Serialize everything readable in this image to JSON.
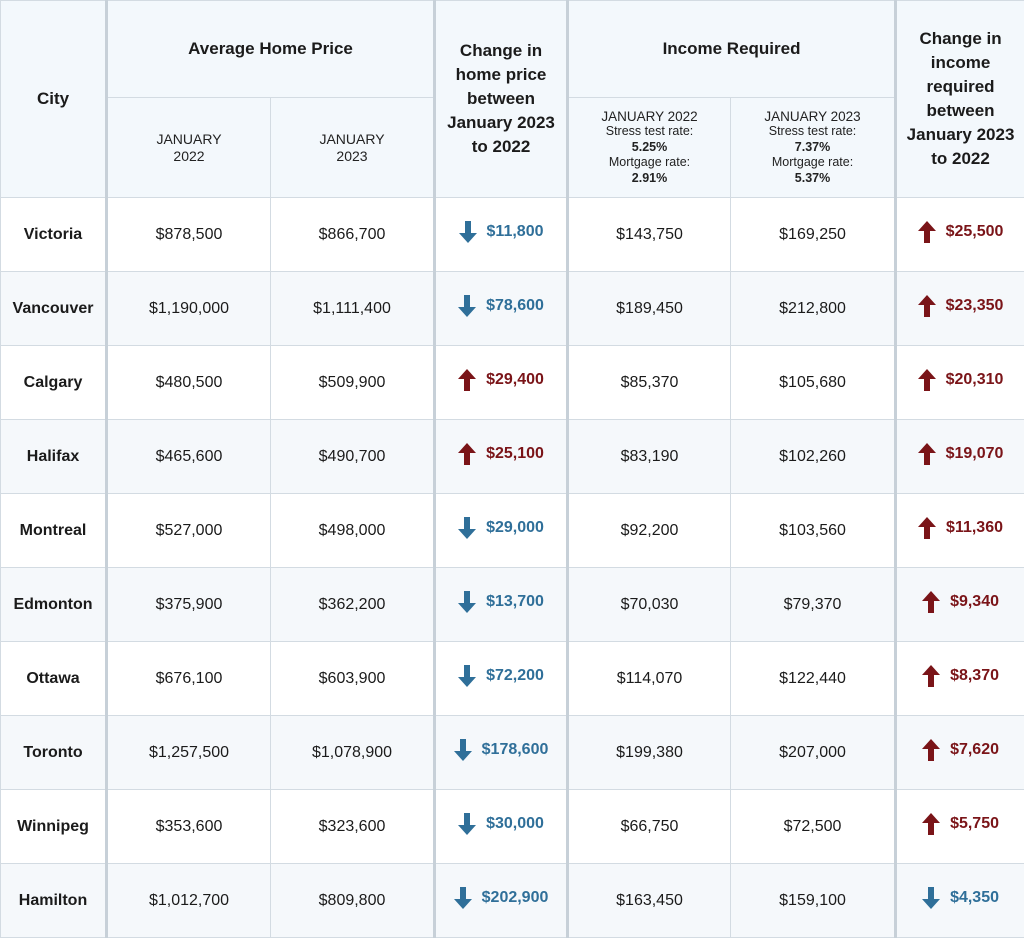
{
  "chart_data": {
    "type": "table",
    "header": {
      "city": "City",
      "avg_price": "Average Home Price",
      "avg_price_2022": "JANUARY 2022",
      "avg_price_2023": "JANUARY 2023",
      "change_price": "Change in home price between January 2023 to 2022",
      "income_required": "Income Required",
      "income_2022": {
        "period": "JANUARY 2022",
        "stress_label": "Stress test rate:",
        "stress_value": "5.25%",
        "mortgage_label": "Mortgage rate:",
        "mortgage_value": "2.91%"
      },
      "income_2023": {
        "period": "JANUARY 2023",
        "stress_label": "Stress test rate:",
        "stress_value": "7.37%",
        "mortgage_label": "Mortgage rate:",
        "mortgage_value": "5.37%"
      },
      "change_income": "Change in income required between January 2023 to 2022"
    },
    "rows": [
      {
        "city": "Victoria",
        "price_2022": "$878,500",
        "price_2023": "$866,700",
        "price_change": "$11,800",
        "price_dir": "down",
        "income_2022": "$143,750",
        "income_2023": "$169,250",
        "income_change": "$25,500",
        "income_dir": "up"
      },
      {
        "city": "Vancouver",
        "price_2022": "$1,190,000",
        "price_2023": "$1,111,400",
        "price_change": "$78,600",
        "price_dir": "down",
        "income_2022": "$189,450",
        "income_2023": "$212,800",
        "income_change": "$23,350",
        "income_dir": "up"
      },
      {
        "city": "Calgary",
        "price_2022": "$480,500",
        "price_2023": "$509,900",
        "price_change": "$29,400",
        "price_dir": "up",
        "income_2022": "$85,370",
        "income_2023": "$105,680",
        "income_change": "$20,310",
        "income_dir": "up"
      },
      {
        "city": "Halifax",
        "price_2022": "$465,600",
        "price_2023": "$490,700",
        "price_change": "$25,100",
        "price_dir": "up",
        "income_2022": "$83,190",
        "income_2023": "$102,260",
        "income_change": "$19,070",
        "income_dir": "up"
      },
      {
        "city": "Montreal",
        "price_2022": "$527,000",
        "price_2023": "$498,000",
        "price_change": "$29,000",
        "price_dir": "down",
        "income_2022": "$92,200",
        "income_2023": "$103,560",
        "income_change": "$11,360",
        "income_dir": "up"
      },
      {
        "city": "Edmonton",
        "price_2022": "$375,900",
        "price_2023": "$362,200",
        "price_change": "$13,700",
        "price_dir": "down",
        "income_2022": "$70,030",
        "income_2023": "$79,370",
        "income_change": "$9,340",
        "income_dir": "up"
      },
      {
        "city": "Ottawa",
        "price_2022": "$676,100",
        "price_2023": "$603,900",
        "price_change": "$72,200",
        "price_dir": "down",
        "income_2022": "$114,070",
        "income_2023": "$122,440",
        "income_change": "$8,370",
        "income_dir": "up"
      },
      {
        "city": "Toronto",
        "price_2022": "$1,257,500",
        "price_2023": "$1,078,900",
        "price_change": "$178,600",
        "price_dir": "down",
        "income_2022": "$199,380",
        "income_2023": "$207,000",
        "income_change": "$7,620",
        "income_dir": "up"
      },
      {
        "city": "Winnipeg",
        "price_2022": "$353,600",
        "price_2023": "$323,600",
        "price_change": "$30,000",
        "price_dir": "down",
        "income_2022": "$66,750",
        "income_2023": "$72,500",
        "income_change": "$5,750",
        "income_dir": "up"
      },
      {
        "city": "Hamilton",
        "price_2022": "$1,012,700",
        "price_2023": "$809,800",
        "price_change": "$202,900",
        "price_dir": "down",
        "income_2022": "$163,450",
        "income_2023": "$159,100",
        "income_change": "$4,350",
        "income_dir": "down"
      }
    ]
  },
  "icons": {
    "up": "arrow-up-icon",
    "down": "arrow-down-icon"
  },
  "colors": {
    "up": "#7a1418",
    "down": "#2f6f99",
    "header_bg": "#f3f8fc",
    "row_alt_bg": "#f5f8fb"
  }
}
